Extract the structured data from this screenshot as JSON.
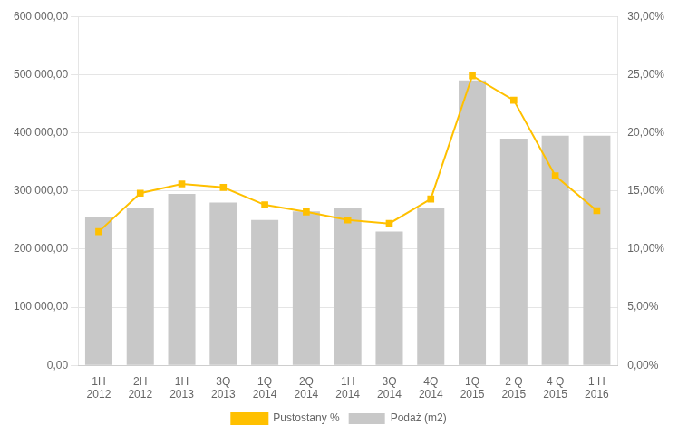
{
  "chart_data": {
    "type": "bar",
    "categories": [
      "1H\n2012",
      "2H\n2012",
      "1H\n2013",
      "3Q\n2013",
      "1Q\n2014",
      "2Q\n2014",
      "1H\n2014",
      "3Q\n2014",
      "4Q\n2014",
      "1Q\n2015",
      "2 Q\n2015",
      "4 Q\n2015",
      "1 H\n2016"
    ],
    "series": [
      {
        "name": "Podaż (m2)",
        "type": "bar",
        "color": "#c8c8c8",
        "values": [
          255000,
          270000,
          295000,
          280000,
          250000,
          265000,
          270000,
          230000,
          270000,
          490000,
          390000,
          395000,
          395000
        ]
      },
      {
        "name": "Pustostany %",
        "type": "line",
        "color": "#FFC000",
        "marker": "square",
        "axis": "y2",
        "values": [
          0.115,
          0.148,
          0.156,
          0.153,
          0.138,
          0.132,
          0.125,
          0.122,
          0.143,
          0.249,
          0.228,
          0.163,
          0.133
        ]
      }
    ],
    "ylim": [
      0,
      600000
    ],
    "yticks": [
      {
        "value": 0,
        "label": "0,00"
      },
      {
        "value": 100000,
        "label": "100 000,00"
      },
      {
        "value": 200000,
        "label": "200 000,00"
      },
      {
        "value": 300000,
        "label": "300 000,00"
      },
      {
        "value": 400000,
        "label": "400 000,00"
      },
      {
        "value": 500000,
        "label": "500 000,00"
      },
      {
        "value": 600000,
        "label": "600 000,00"
      }
    ],
    "y2lim": [
      0,
      0.3
    ],
    "y2ticks": [
      {
        "value": 0,
        "label": "0,00%"
      },
      {
        "value": 0.05,
        "label": "5,00%"
      },
      {
        "value": 0.1,
        "label": "10,00%"
      },
      {
        "value": 0.15,
        "label": "15,00%"
      },
      {
        "value": 0.2,
        "label": "20,00%"
      },
      {
        "value": 0.25,
        "label": "25,00%"
      },
      {
        "value": 0.3,
        "label": "30,00%"
      }
    ],
    "grid": true,
    "legend": "bottom"
  }
}
